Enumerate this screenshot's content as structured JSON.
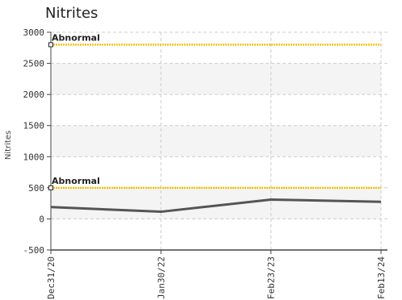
{
  "chart_data": {
    "type": "line",
    "title": "Nitrites",
    "xlabel": "",
    "ylabel": "Nitrites",
    "ylim": [
      -500,
      3000
    ],
    "yticks": [
      -500,
      0,
      500,
      1000,
      1500,
      2000,
      2500,
      3000
    ],
    "x": [
      "Dec31/20",
      "Jan30/22",
      "Feb23/23",
      "Feb13/24"
    ],
    "series": [
      {
        "values": [
          190,
          115,
          310,
          275
        ]
      }
    ],
    "thresholds": [
      {
        "label": "Abnormal",
        "value": 2800
      },
      {
        "label": "Abnormal",
        "value": 500
      }
    ],
    "grid": true,
    "colors": {
      "line": "#555555",
      "threshold": "#f2c318",
      "grid": "#cccccc",
      "band": "#f4f4f4",
      "axis": "#444444"
    }
  }
}
